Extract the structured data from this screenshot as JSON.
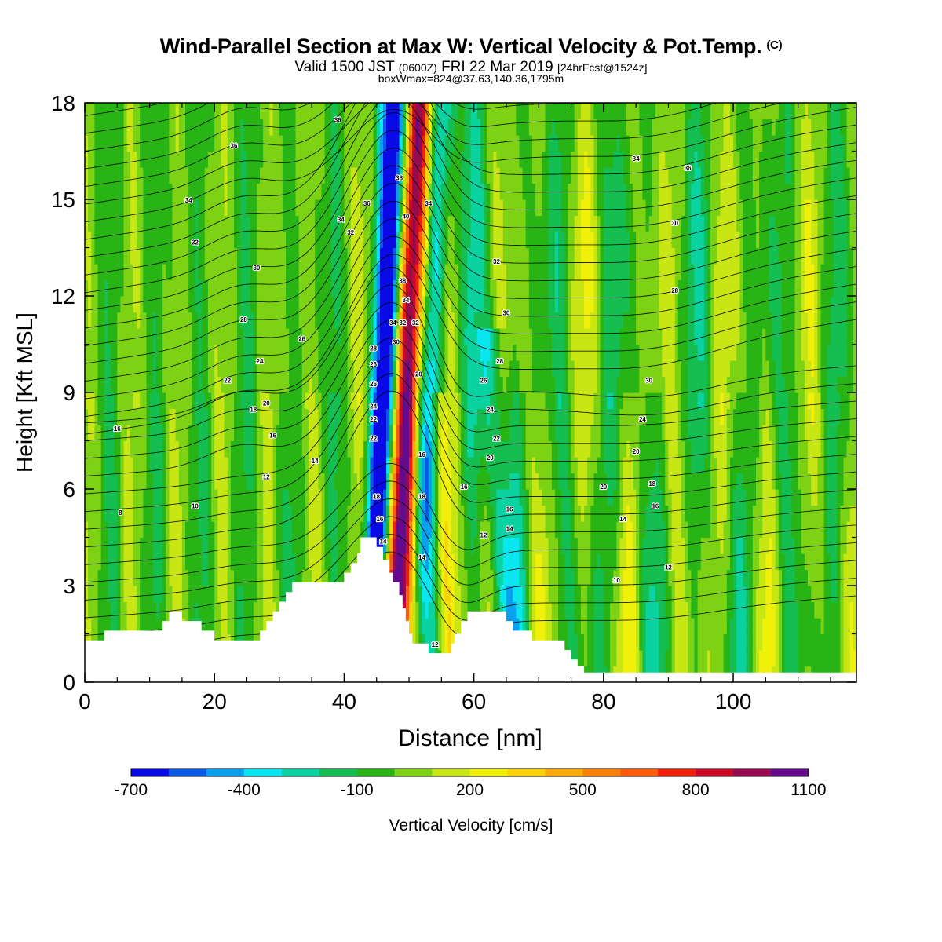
{
  "header": {
    "title": "Wind-Parallel Section at Max W: Vertical Velocity & Pot.Temp.",
    "title_mark": "(C)",
    "valid_prefix": "Valid 1500 JST",
    "valid_utc": "(0600Z)",
    "valid_date": "FRI 22 Mar 2019",
    "forecast": "[24hrFcst@1524z]",
    "boxinfo": "boxWmax=824@37.63,140.36,1795m"
  },
  "chart_data": {
    "type": "heatmap",
    "xlabel": "Distance [nm]",
    "ylabel": "Height [Kft MSL]",
    "xlim": [
      0,
      119
    ],
    "ylim": [
      0,
      18
    ],
    "x_ticks": [
      "0",
      "20",
      "40",
      "60",
      "80",
      "100"
    ],
    "y_ticks": [
      "0",
      "3",
      "6",
      "9",
      "12",
      "15",
      "18"
    ],
    "colorbar": {
      "label": "Vertical Velocity [cm/s]",
      "tick_labels": [
        "-700",
        "-400",
        "-100",
        "200",
        "500",
        "800",
        "1100"
      ],
      "levels": [
        -700,
        -600,
        -500,
        -400,
        -300,
        -200,
        -100,
        0,
        100,
        200,
        300,
        400,
        500,
        600,
        700,
        800,
        900,
        1000,
        1100
      ],
      "colors": [
        "#0a0ae6",
        "#0a5ae6",
        "#0aa0f0",
        "#0ae6f0",
        "#0ad2a0",
        "#14be50",
        "#28b414",
        "#7dd214",
        "#c8e614",
        "#f0f00a",
        "#fad20a",
        "#faaa0a",
        "#fa820a",
        "#fa5a0a",
        "#f01e0a",
        "#c80a28",
        "#960a50",
        "#640a8c"
      ]
    },
    "max_w_cm_s": 824,
    "terrain_kft": [
      [
        0,
        1.3
      ],
      [
        3,
        1.3
      ],
      [
        3,
        1.6
      ],
      [
        12,
        1.6
      ],
      [
        12,
        1.9
      ],
      [
        13,
        1.9
      ],
      [
        13,
        2.2
      ],
      [
        15,
        2.2
      ],
      [
        15,
        1.9
      ],
      [
        18,
        1.9
      ],
      [
        18,
        1.6
      ],
      [
        20,
        1.6
      ],
      [
        20,
        1.3
      ],
      [
        27,
        1.3
      ],
      [
        27,
        1.6
      ],
      [
        28,
        1.6
      ],
      [
        28,
        1.9
      ],
      [
        29,
        1.9
      ],
      [
        29,
        2.2
      ],
      [
        30,
        2.2
      ],
      [
        30,
        2.5
      ],
      [
        31,
        2.5
      ],
      [
        31,
        2.8
      ],
      [
        32,
        2.8
      ],
      [
        32,
        3.1
      ],
      [
        40,
        3.1
      ],
      [
        40,
        3.4
      ],
      [
        41,
        3.4
      ],
      [
        41,
        3.7
      ],
      [
        42,
        3.7
      ],
      [
        42,
        4.0
      ],
      [
        42.5,
        4.0
      ],
      [
        42.5,
        4.5
      ],
      [
        45,
        4.5
      ],
      [
        45,
        4.2
      ],
      [
        46,
        4.2
      ],
      [
        46,
        3.8
      ],
      [
        47,
        3.8
      ],
      [
        47,
        3.4
      ],
      [
        47.5,
        3.4
      ],
      [
        47.5,
        3.1
      ],
      [
        48.5,
        3.1
      ],
      [
        48.5,
        2.7
      ],
      [
        49,
        2.7
      ],
      [
        49,
        2.3
      ],
      [
        49.5,
        2.3
      ],
      [
        49.5,
        1.9
      ],
      [
        50,
        1.9
      ],
      [
        50,
        1.5
      ],
      [
        50.5,
        1.5
      ],
      [
        50.5,
        1.2
      ],
      [
        53,
        1.2
      ],
      [
        53,
        0.9
      ],
      [
        56.5,
        0.9
      ],
      [
        56.5,
        1.2
      ],
      [
        57,
        1.2
      ],
      [
        57,
        1.5
      ],
      [
        58,
        1.5
      ],
      [
        58,
        1.9
      ],
      [
        59,
        1.9
      ],
      [
        59,
        2.2
      ],
      [
        65,
        2.2
      ],
      [
        65,
        1.9
      ],
      [
        66,
        1.9
      ],
      [
        66,
        1.6
      ],
      [
        69,
        1.6
      ],
      [
        69,
        1.3
      ],
      [
        74,
        1.3
      ],
      [
        74,
        1.0
      ],
      [
        75,
        1.0
      ],
      [
        75,
        0.7
      ],
      [
        76,
        0.7
      ],
      [
        76,
        0.5
      ],
      [
        77,
        0.5
      ],
      [
        77,
        0.3
      ],
      [
        119,
        0.3
      ]
    ],
    "contour_labels": [
      {
        "x": 39,
        "y": 17.4,
        "text": "36"
      },
      {
        "x": 23,
        "y": 16.6,
        "text": "36"
      },
      {
        "x": 16,
        "y": 14.9,
        "text": "34"
      },
      {
        "x": 17,
        "y": 13.6,
        "text": "32"
      },
      {
        "x": 26.5,
        "y": 12.8,
        "text": "30"
      },
      {
        "x": 24.5,
        "y": 11.2,
        "text": "28"
      },
      {
        "x": 33.5,
        "y": 10.6,
        "text": "26"
      },
      {
        "x": 27,
        "y": 9.9,
        "text": "24"
      },
      {
        "x": 22,
        "y": 9.3,
        "text": "22"
      },
      {
        "x": 28,
        "y": 8.6,
        "text": "20"
      },
      {
        "x": 26,
        "y": 8.4,
        "text": "18"
      },
      {
        "x": 29,
        "y": 7.6,
        "text": "16"
      },
      {
        "x": 35.5,
        "y": 6.8,
        "text": "14"
      },
      {
        "x": 28,
        "y": 6.3,
        "text": "12"
      },
      {
        "x": 17,
        "y": 5.4,
        "text": "10"
      },
      {
        "x": 5.5,
        "y": 5.2,
        "text": "8"
      },
      {
        "x": 5,
        "y": 7.8,
        "text": "16"
      },
      {
        "x": 39.5,
        "y": 14.3,
        "text": "34"
      },
      {
        "x": 41,
        "y": 13.9,
        "text": "32"
      },
      {
        "x": 43.5,
        "y": 14.8,
        "text": "36"
      },
      {
        "x": 48.5,
        "y": 15.6,
        "text": "38"
      },
      {
        "x": 49.5,
        "y": 14.4,
        "text": "40"
      },
      {
        "x": 53,
        "y": 14.8,
        "text": "34"
      },
      {
        "x": 49,
        "y": 12.4,
        "text": "38"
      },
      {
        "x": 49.5,
        "y": 11.8,
        "text": "34"
      },
      {
        "x": 47.5,
        "y": 11.1,
        "text": "34"
      },
      {
        "x": 49,
        "y": 11.1,
        "text": "32"
      },
      {
        "x": 51,
        "y": 11.1,
        "text": "32"
      },
      {
        "x": 48,
        "y": 10.5,
        "text": "30"
      },
      {
        "x": 44.5,
        "y": 10.3,
        "text": "28"
      },
      {
        "x": 44.5,
        "y": 9.8,
        "text": "26"
      },
      {
        "x": 51.5,
        "y": 9.5,
        "text": "20"
      },
      {
        "x": 44.5,
        "y": 9.2,
        "text": "26"
      },
      {
        "x": 44.5,
        "y": 8.5,
        "text": "24"
      },
      {
        "x": 44.5,
        "y": 8.1,
        "text": "22"
      },
      {
        "x": 44.5,
        "y": 7.5,
        "text": "22"
      },
      {
        "x": 52,
        "y": 7.0,
        "text": "16"
      },
      {
        "x": 45,
        "y": 5.7,
        "text": "18"
      },
      {
        "x": 45.5,
        "y": 5.0,
        "text": "16"
      },
      {
        "x": 46,
        "y": 4.3,
        "text": "14"
      },
      {
        "x": 52,
        "y": 5.7,
        "text": "18"
      },
      {
        "x": 52,
        "y": 3.8,
        "text": "14"
      },
      {
        "x": 54,
        "y": 1.1,
        "text": "12"
      },
      {
        "x": 58.5,
        "y": 6.0,
        "text": "16"
      },
      {
        "x": 63.5,
        "y": 13.0,
        "text": "32"
      },
      {
        "x": 65,
        "y": 11.4,
        "text": "30"
      },
      {
        "x": 64,
        "y": 9.9,
        "text": "28"
      },
      {
        "x": 61.5,
        "y": 9.3,
        "text": "26"
      },
      {
        "x": 62.5,
        "y": 8.4,
        "text": "24"
      },
      {
        "x": 63.5,
        "y": 7.5,
        "text": "22"
      },
      {
        "x": 62.5,
        "y": 6.9,
        "text": "20"
      },
      {
        "x": 65.5,
        "y": 5.3,
        "text": "16"
      },
      {
        "x": 65.5,
        "y": 4.7,
        "text": "14"
      },
      {
        "x": 61.5,
        "y": 4.5,
        "text": "12"
      },
      {
        "x": 85,
        "y": 16.2,
        "text": "34"
      },
      {
        "x": 93,
        "y": 15.9,
        "text": "36"
      },
      {
        "x": 91,
        "y": 14.2,
        "text": "30"
      },
      {
        "x": 91,
        "y": 12.1,
        "text": "28"
      },
      {
        "x": 87,
        "y": 9.3,
        "text": "30"
      },
      {
        "x": 86,
        "y": 8.1,
        "text": "24"
      },
      {
        "x": 85,
        "y": 7.1,
        "text": "20"
      },
      {
        "x": 80,
        "y": 6.0,
        "text": "20"
      },
      {
        "x": 87.5,
        "y": 6.1,
        "text": "18"
      },
      {
        "x": 88,
        "y": 5.4,
        "text": "16"
      },
      {
        "x": 83,
        "y": 5.0,
        "text": "14"
      },
      {
        "x": 90,
        "y": 3.5,
        "text": "12"
      },
      {
        "x": 82,
        "y": 3.1,
        "text": "10"
      }
    ]
  }
}
